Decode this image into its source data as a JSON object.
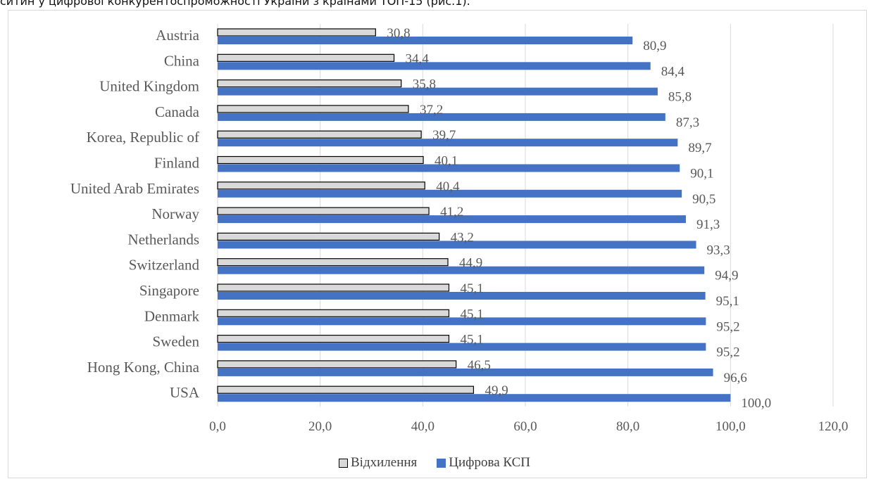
{
  "caption_fragment": "ситин у цифрової конкурентоспроможності України з країнами ТОП-15 (рис.1).",
  "chart_data": {
    "type": "bar",
    "orientation": "horizontal",
    "categories": [
      "Austria",
      "China",
      "United Kingdom",
      "Canada",
      "Korea, Republic of",
      "Finland",
      "United Arab Emirates",
      "Norway",
      "Netherlands",
      "Switzerland",
      "Singapore",
      "Denmark",
      "Sweden",
      "Hong Kong, China",
      "USA"
    ],
    "series": [
      {
        "name": "Відхилення",
        "values": [
          30.8,
          34.4,
          35.8,
          37.2,
          39.7,
          40.1,
          40.4,
          41.2,
          43.2,
          44.9,
          45.1,
          45.1,
          45.1,
          46.5,
          49.9
        ],
        "labels": [
          "30,8",
          "34,4",
          "35,8",
          "37,2",
          "39,7",
          "40,1",
          "40,4",
          "41,2",
          "43,2",
          "44,9",
          "45,1",
          "45,1",
          "45,1",
          "46,5",
          "49,9"
        ],
        "color": "#d9d9d9",
        "stroke": "#000000"
      },
      {
        "name": "Цифрова КСП",
        "values": [
          80.9,
          84.4,
          85.8,
          87.3,
          89.7,
          90.1,
          90.5,
          91.3,
          93.3,
          94.9,
          95.1,
          95.2,
          95.2,
          96.6,
          100.0
        ],
        "labels": [
          "80,9",
          "84,4",
          "85,8",
          "87,3",
          "89,7",
          "90,1",
          "90,5",
          "91,3",
          "93,3",
          "94,9",
          "95,1",
          "95,2",
          "95,2",
          "96,6",
          "100,0"
        ],
        "color": "#4472c4",
        "stroke": "#4472c4"
      }
    ],
    "xlim": [
      0,
      120
    ],
    "x_ticks": [
      0,
      20,
      40,
      60,
      80,
      100,
      120
    ],
    "x_tick_labels": [
      "0,0",
      "20,0",
      "40,0",
      "60,0",
      "80,0",
      "100,0",
      "120,0"
    ],
    "grid": "vertical",
    "legend_position": "bottom"
  },
  "legend": {
    "items": [
      {
        "label": "Відхилення",
        "color": "#d9d9d9",
        "border": "#000000"
      },
      {
        "label": "Цифрова КСП",
        "color": "#4472c4",
        "border": "#4472c4"
      }
    ]
  }
}
